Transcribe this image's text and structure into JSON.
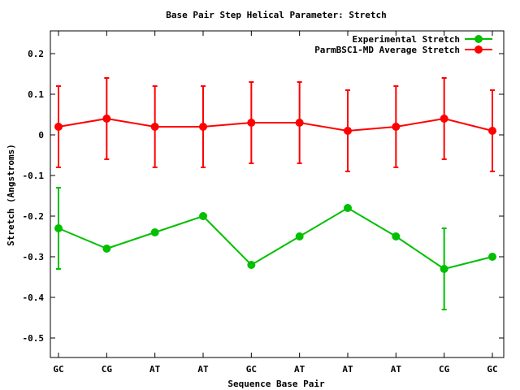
{
  "chart_data": {
    "type": "line",
    "title": "Base Pair Step Helical Parameter: Stretch",
    "xlabel": "Sequence Base Pair",
    "ylabel": "Stretch (Angstroms)",
    "categories": [
      "GC",
      "CG",
      "AT",
      "AT",
      "GC",
      "AT",
      "AT",
      "AT",
      "CG",
      "GC"
    ],
    "ylim": [
      -0.55,
      0.25
    ],
    "yticks": [
      0.2,
      0.1,
      0,
      -0.1,
      -0.2,
      -0.3,
      -0.4,
      -0.5
    ],
    "ytick_labels": [
      "0.2",
      "0.1",
      "0",
      "-0.1",
      "-0.2",
      "-0.3",
      "-0.4",
      "-0.5"
    ],
    "grid": false,
    "legend_position": "top-right",
    "series": [
      {
        "name": "Experimental Stretch",
        "color": "#00c000",
        "values": [
          -0.23,
          -0.28,
          -0.24,
          -0.2,
          -0.32,
          -0.25,
          -0.18,
          -0.25,
          -0.33,
          -0.3
        ],
        "errors": [
          0.1,
          null,
          null,
          null,
          null,
          null,
          null,
          null,
          0.1,
          null
        ]
      },
      {
        "name": "ParmBSC1-MD Average Stretch",
        "color": "#ff0000",
        "values": [
          0.02,
          0.04,
          0.02,
          0.02,
          0.03,
          0.03,
          0.01,
          0.02,
          0.04,
          0.01
        ],
        "errors": [
          0.1,
          0.1,
          0.1,
          0.1,
          0.1,
          0.1,
          0.1,
          0.1,
          0.1,
          0.1
        ]
      }
    ]
  }
}
